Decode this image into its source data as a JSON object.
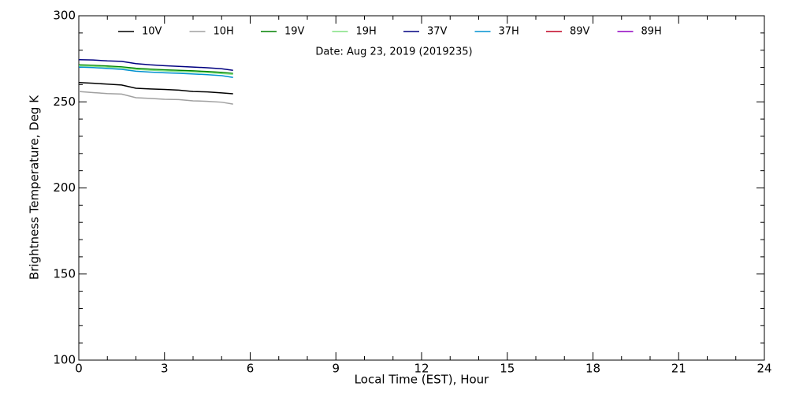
{
  "chart_data": {
    "type": "line",
    "subtitle": "Date: Aug 23, 2019 (2019235)",
    "x_label": "Local Time (EST), Hour",
    "y_label": "Brightness Temperature, Deg K",
    "x": [
      0,
      0.5,
      1,
      1.5,
      2,
      2.5,
      3,
      3.5,
      4,
      4.5,
      5,
      5.4
    ],
    "series": [
      {
        "name": "10V",
        "color": "#000000",
        "values": [
          261.2,
          260.8,
          260.3,
          259.8,
          257.9,
          257.5,
          257.2,
          256.8,
          256.0,
          255.8,
          255.2,
          254.7
        ]
      },
      {
        "name": "10H",
        "color": "#a0a0a0",
        "values": [
          256.0,
          255.4,
          254.8,
          254.5,
          252.4,
          252.0,
          251.5,
          251.3,
          250.6,
          250.3,
          249.8,
          248.7
        ]
      },
      {
        "name": "19V",
        "color": "#008000",
        "values": [
          271.5,
          271.2,
          270.8,
          270.3,
          269.5,
          269.0,
          268.6,
          268.3,
          268.0,
          267.6,
          267.1,
          266.5
        ]
      },
      {
        "name": "19H",
        "color": "#80e080",
        "values": [
          271.0,
          270.7,
          270.2,
          269.8,
          268.9,
          268.4,
          268.0,
          267.7,
          267.4,
          267.0,
          266.5,
          266.0
        ]
      },
      {
        "name": "37V",
        "color": "#000080",
        "values": [
          274.5,
          274.3,
          273.8,
          273.5,
          272.2,
          271.5,
          271.0,
          270.6,
          270.2,
          269.8,
          269.2,
          268.3
        ]
      },
      {
        "name": "37H",
        "color": "#0090d0",
        "values": [
          270.2,
          269.9,
          269.4,
          268.9,
          267.8,
          267.3,
          266.9,
          266.6,
          266.2,
          265.8,
          265.2,
          264.2
        ]
      },
      {
        "name": "89V",
        "color": "#c00020",
        "values": [
          null,
          null,
          null,
          null,
          null,
          null,
          null,
          null,
          null,
          null,
          null,
          null
        ]
      },
      {
        "name": "89H",
        "color": "#9000c0",
        "values": [
          null,
          null,
          null,
          null,
          null,
          null,
          null,
          null,
          null,
          null,
          null,
          null
        ]
      }
    ],
    "xlim": [
      0,
      24
    ],
    "xticks": [
      0,
      3,
      6,
      9,
      12,
      15,
      18,
      21,
      24
    ],
    "ylim": [
      100,
      300
    ],
    "yticks": [
      100,
      150,
      200,
      250,
      300
    ],
    "legend": "top"
  }
}
